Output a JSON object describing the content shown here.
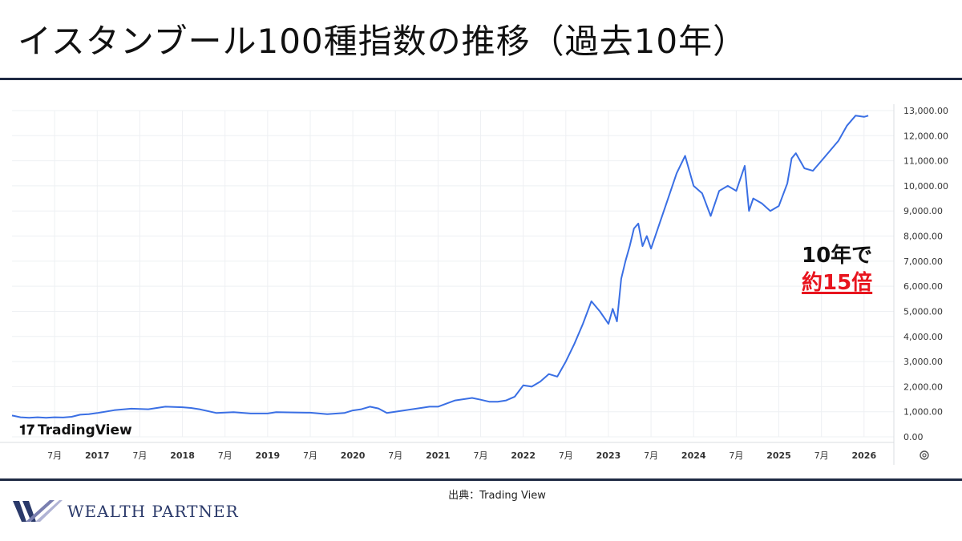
{
  "title": "イスタンブール100種指数の推移（過去10年）",
  "source": "出典：Trading View",
  "brand": {
    "name": "WEALTH PARTNER",
    "logo": "wealth-partner-w-logo"
  },
  "annotation": {
    "line1": "10年で",
    "line2": "約15倍",
    "highlight_color": "#e8141e"
  },
  "watermark": "TradingView",
  "colors": {
    "line": "#3a6fe4",
    "rule": "#1f2a44",
    "grid": "#eef0f3",
    "axis_text": "#333333"
  },
  "chart_data": {
    "type": "line",
    "title": "",
    "xlabel": "",
    "ylabel": "",
    "x_ticks": [
      "7月",
      "2017",
      "7月",
      "2018",
      "7月",
      "2019",
      "7月",
      "2020",
      "7月",
      "2021",
      "7月",
      "2022",
      "7月",
      "2023",
      "7月",
      "2024",
      "7月",
      "2025",
      "7月",
      "2026"
    ],
    "y_ticks": [
      "13,000.00",
      "12,000.00",
      "11,000.00",
      "10,000.00",
      "9,000.00",
      "8,000.00",
      "7,000.00",
      "6,000.00",
      "5,000.00",
      "4,000.00",
      "3,000.00",
      "2,000.00",
      "1,000.00",
      "0.00"
    ],
    "ylim": [
      0,
      13000
    ],
    "xlim": [
      2016.0,
      2026.35
    ],
    "grid": true,
    "series": [
      {
        "x": [
          2016.0,
          2016.1,
          2016.2,
          2016.3,
          2016.4,
          2016.5,
          2016.6,
          2016.7,
          2016.8,
          2016.9,
          2017.0,
          2017.2,
          2017.4,
          2017.6,
          2017.8,
          2018.0,
          2018.1,
          2018.2,
          2018.4,
          2018.6,
          2018.8,
          2019.0,
          2019.1,
          2019.3,
          2019.5,
          2019.7,
          2019.9,
          2020.0,
          2020.1,
          2020.2,
          2020.3,
          2020.4,
          2020.6,
          2020.8,
          2020.9,
          2021.0,
          2021.2,
          2021.4,
          2021.5,
          2021.6,
          2021.7,
          2021.8,
          2021.9,
          2022.0,
          2022.1,
          2022.2,
          2022.3,
          2022.4,
          2022.5,
          2022.6,
          2022.7,
          2022.8,
          2022.9,
          2023.0,
          2023.05,
          2023.1,
          2023.15,
          2023.2,
          2023.25,
          2023.3,
          2023.35,
          2023.4,
          2023.45,
          2023.5,
          2023.6,
          2023.7,
          2023.8,
          2023.9,
          2024.0,
          2024.1,
          2024.2,
          2024.3,
          2024.4,
          2024.5,
          2024.6,
          2024.65,
          2024.7,
          2024.8,
          2024.9,
          2025.0,
          2025.1,
          2025.15,
          2025.2,
          2025.3,
          2025.4,
          2025.5,
          2025.6,
          2025.7,
          2025.8,
          2025.9,
          2026.0,
          2026.05
        ],
        "y": [
          850,
          780,
          760,
          780,
          760,
          780,
          770,
          800,
          880,
          900,
          950,
          1060,
          1120,
          1100,
          1200,
          1180,
          1150,
          1100,
          950,
          980,
          930,
          930,
          980,
          970,
          960,
          900,
          950,
          1050,
          1100,
          1200,
          1130,
          950,
          1050,
          1150,
          1200,
          1200,
          1450,
          1550,
          1480,
          1400,
          1400,
          1450,
          1600,
          2050,
          2000,
          2200,
          2500,
          2400,
          3000,
          3700,
          4500,
          5400,
          5000,
          4500,
          5100,
          4600,
          6300,
          7000,
          7600,
          8300,
          8500,
          7600,
          8000,
          7500,
          8500,
          9500,
          10500,
          11200,
          10000,
          9700,
          8800,
          9800,
          10000,
          9800,
          10800,
          9000,
          9500,
          9300,
          9000,
          9200,
          10100,
          11100,
          11300,
          10700,
          10600,
          11000,
          11400,
          11800,
          12400,
          12800,
          12750,
          12800
        ]
      }
    ]
  }
}
